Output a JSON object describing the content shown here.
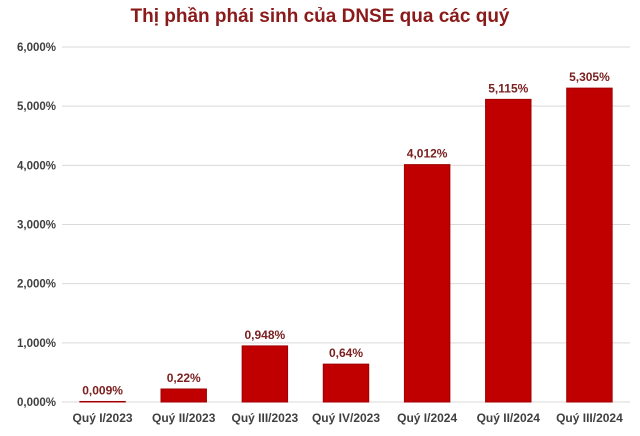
{
  "chart_data": {
    "type": "bar",
    "title": "Thị phần phái sinh của DNSE qua các quý",
    "categories": [
      "Quý I/2023",
      "Quý II/2023",
      "Quý III/2023",
      "Quý IV/2023",
      "Quý I/2024",
      "Quý II/2024",
      "Quý III/2024"
    ],
    "values": [
      0.009,
      0.22,
      0.948,
      0.64,
      4.012,
      5.115,
      5.305
    ],
    "data_labels": [
      "0,009%",
      "0,22%",
      "0,948%",
      "0,64%",
      "4,012%",
      "5,115%",
      "5,305%"
    ],
    "ylim": [
      0,
      6
    ],
    "yticks": [
      0,
      1,
      2,
      3,
      4,
      5,
      6
    ],
    "ytick_labels": [
      "0,000%",
      "1,000%",
      "2,000%",
      "3,000%",
      "4,000%",
      "5,000%",
      "6,000%"
    ],
    "xlabel": "",
    "ylabel": "",
    "grid": true,
    "legend": "none",
    "colors": {
      "bar": "#c00000",
      "bar_edge": "#a00000",
      "title": "#8b1a1a",
      "data_label": "#7b2020",
      "axis_text": "#404040",
      "gridline": "#d9d9d9"
    }
  }
}
